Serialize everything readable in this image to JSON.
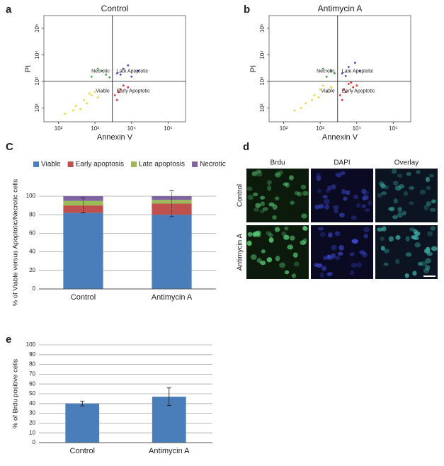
{
  "chart_data": [
    {
      "type": "scatter",
      "panel_label": "a",
      "title": "Control",
      "x_label": "Annexin V",
      "y_label": "PI",
      "xscale": "log",
      "yscale": "log",
      "xlim": [
        40,
        300000
      ],
      "ylim": [
        30,
        300000
      ],
      "xticks": [
        {
          "value": 100,
          "label": "10²"
        },
        {
          "value": 1000,
          "label": "10³"
        },
        {
          "value": 10000,
          "label": "10⁴"
        },
        {
          "value": 100000,
          "label": "10⁵"
        }
      ],
      "yticks": [
        {
          "value": 100,
          "label": "10²"
        },
        {
          "value": 1000,
          "label": "10³"
        },
        {
          "value": 10000,
          "label": "10⁴"
        },
        {
          "value": 100000,
          "label": "10⁵"
        }
      ],
      "quadrant_x": 3000,
      "quadrant_y": 1000,
      "series": [
        {
          "name": "Viable",
          "color": "#f2d23c",
          "x": [
            150,
            300,
            500,
            800,
            1200,
            600,
            400,
            1000,
            250,
            700
          ],
          "y": [
            60,
            120,
            200,
            300,
            250,
            150,
            90,
            400,
            80,
            350
          ]
        },
        {
          "name": "Early Apoptotic",
          "color": "#e0302e",
          "x": [
            3500,
            5000,
            4000,
            6000,
            8000,
            4500
          ],
          "y": [
            300,
            500,
            200,
            700,
            600,
            400
          ]
        },
        {
          "name": "Late Apoptotic",
          "color": "#4a4ab8",
          "x": [
            4000,
            6000,
            10000,
            8000,
            15000,
            5000
          ],
          "y": [
            2000,
            3000,
            1500,
            4000,
            2500,
            1800
          ]
        },
        {
          "name": "Necrotic",
          "color": "#44a544",
          "x": [
            800,
            1500,
            2000,
            1200,
            2500
          ],
          "y": [
            1500,
            2500,
            1800,
            3000,
            1400
          ]
        }
      ]
    },
    {
      "type": "scatter",
      "panel_label": "b",
      "title": "Antimycin A",
      "x_label": "Annexin V",
      "y_label": "PI",
      "xscale": "log",
      "yscale": "log",
      "xlim": [
        40,
        300000
      ],
      "ylim": [
        30,
        300000
      ],
      "xticks": [
        {
          "value": 100,
          "label": "10²"
        },
        {
          "value": 1000,
          "label": "10³"
        },
        {
          "value": 10000,
          "label": "10⁴"
        },
        {
          "value": 100000,
          "label": "10⁵"
        }
      ],
      "yticks": [
        {
          "value": 100,
          "label": "10²"
        },
        {
          "value": 1000,
          "label": "10³"
        },
        {
          "value": 10000,
          "label": "10⁴"
        },
        {
          "value": 100000,
          "label": "10⁵"
        }
      ],
      "quadrant_x": 3000,
      "quadrant_y": 1000,
      "series": [
        {
          "name": "Viable",
          "color": "#f2d23c",
          "x": [
            200,
            400,
            700,
            1000,
            1500,
            2000,
            600,
            300,
            900,
            1200
          ],
          "y": [
            80,
            150,
            300,
            500,
            400,
            600,
            200,
            100,
            250,
            700
          ]
        },
        {
          "name": "Early Apoptotic",
          "color": "#e0302e",
          "x": [
            3500,
            4500,
            6000,
            8000,
            5000,
            7000,
            10000,
            4000
          ],
          "y": [
            300,
            500,
            800,
            600,
            400,
            900,
            700,
            200
          ]
        },
        {
          "name": "Late Apoptotic",
          "color": "#4a4ab8",
          "x": [
            4000,
            6000,
            9000,
            12000,
            5000
          ],
          "y": [
            2000,
            3500,
            5000,
            2500,
            1600
          ]
        },
        {
          "name": "Necrotic",
          "color": "#44a544",
          "x": [
            1500,
            2000,
            2500,
            1200
          ],
          "y": [
            1500,
            2500,
            2000,
            3000
          ]
        }
      ]
    },
    {
      "type": "stacked_bar",
      "panel_label": "C",
      "y_label": "% of Viable versus Apoptotic/Necrotic cells",
      "categories": [
        "Control",
        "Antimycin A"
      ],
      "ylim": [
        0,
        100
      ],
      "yticks": [
        0,
        20,
        40,
        60,
        80,
        100
      ],
      "grid": true,
      "series": [
        {
          "name": "Viable",
          "color": "#4a7ebb",
          "values": [
            82,
            80
          ]
        },
        {
          "name": "Early apoptosis",
          "color": "#c0504d",
          "values": [
            8,
            12
          ],
          "errors": [
            8,
            14
          ]
        },
        {
          "name": "Late apoptosis",
          "color": "#9bbb59",
          "values": [
            5,
            4
          ]
        },
        {
          "name": "Necrotic",
          "color": "#8064a2",
          "values": [
            5,
            4
          ]
        }
      ]
    },
    {
      "type": "bar",
      "panel_label": "e",
      "y_label": "% of Brdu positive cells",
      "categories": [
        "Control",
        "Antimycin A"
      ],
      "values": [
        40,
        47
      ],
      "errors": [
        2.5,
        9
      ],
      "color": "#4a7ebb",
      "ylim": [
        0,
        100
      ],
      "yticks": [
        0,
        10,
        20,
        30,
        40,
        50,
        60,
        70,
        80,
        90,
        100
      ],
      "grid": true
    }
  ],
  "image_panel": {
    "panel_label": "d",
    "columns": [
      "Brdu",
      "DAPI",
      "Overlay"
    ],
    "rows": [
      "Control",
      "Antimycin A"
    ]
  }
}
